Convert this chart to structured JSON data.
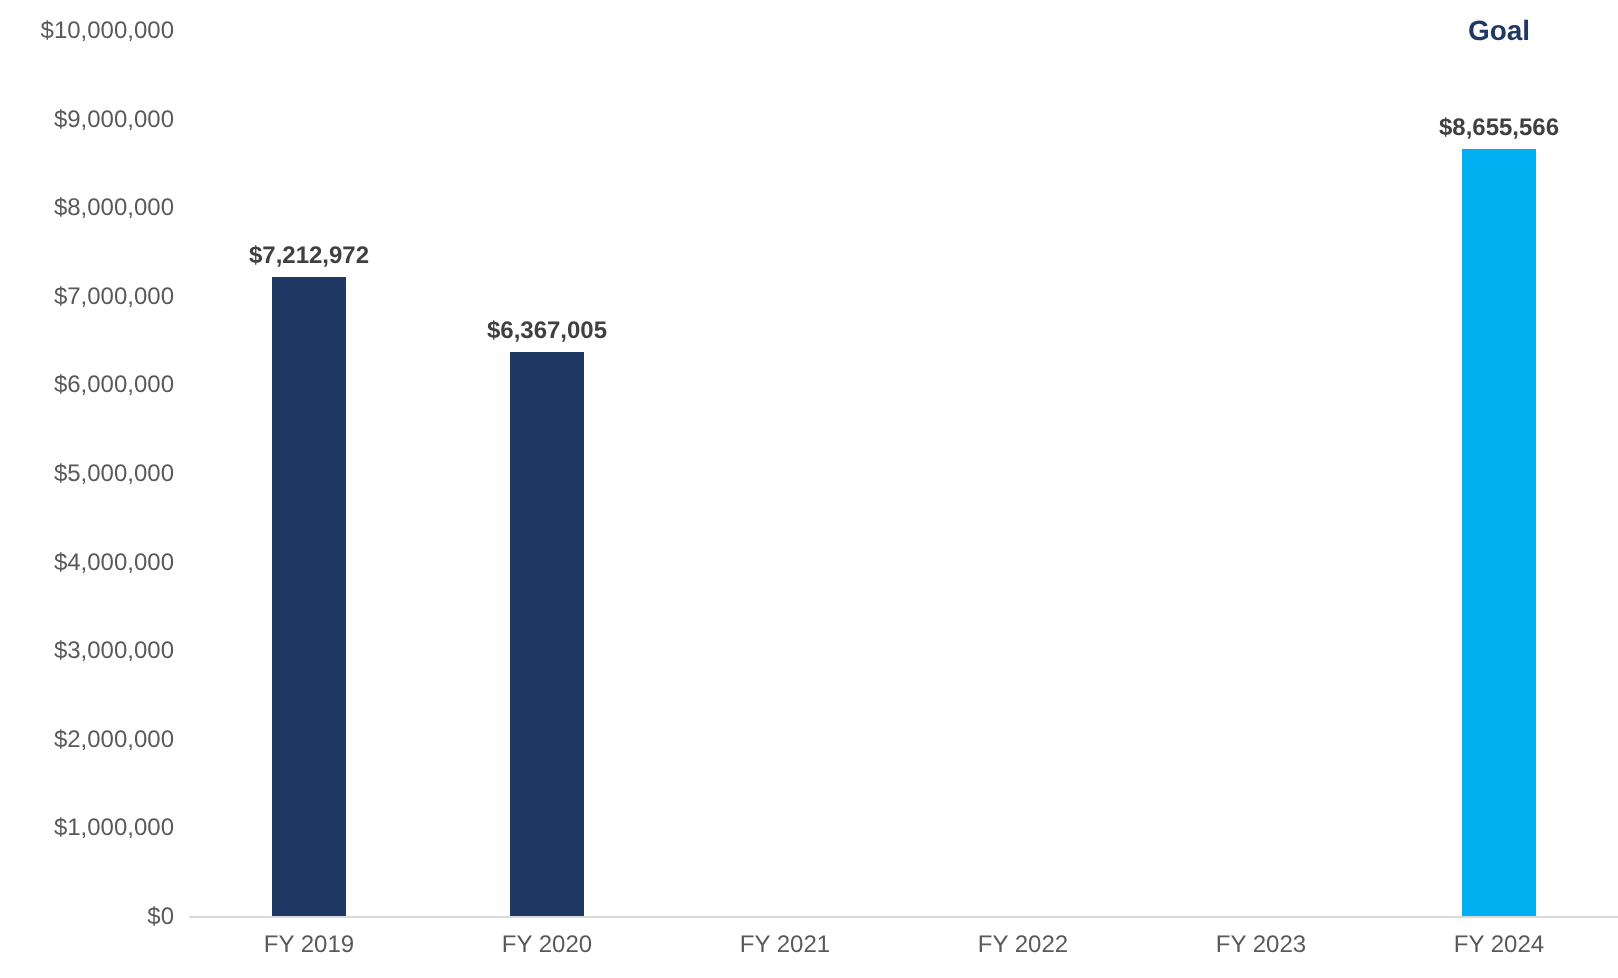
{
  "chart_data": {
    "type": "bar",
    "categories": [
      "FY 2019",
      "FY 2020",
      "FY 2021",
      "FY 2022",
      "FY 2023",
      "FY 2024"
    ],
    "values": [
      7212972,
      6367005,
      null,
      null,
      null,
      8655566
    ],
    "colors": [
      "#203864",
      "#203864",
      "#203864",
      "#203864",
      "#203864",
      "#00b0f0"
    ],
    "value_labels": [
      "$7,212,972",
      "$6,367,005",
      null,
      null,
      null,
      "$8,655,566"
    ],
    "ylim": [
      0,
      10000000
    ],
    "yticks": [
      {
        "value": 0,
        "label": "$0"
      },
      {
        "value": 1000000,
        "label": "$1,000,000"
      },
      {
        "value": 2000000,
        "label": "$2,000,000"
      },
      {
        "value": 3000000,
        "label": "$3,000,000"
      },
      {
        "value": 4000000,
        "label": "$4,000,000"
      },
      {
        "value": 5000000,
        "label": "$5,000,000"
      },
      {
        "value": 6000000,
        "label": "$6,000,000"
      },
      {
        "value": 7000000,
        "label": "$7,000,000"
      },
      {
        "value": 8000000,
        "label": "$8,000,000"
      },
      {
        "value": 9000000,
        "label": "$9,000,000"
      },
      {
        "value": 10000000,
        "label": "$10,000,000"
      }
    ],
    "annotations": [
      "Goal"
    ],
    "grid": false
  }
}
